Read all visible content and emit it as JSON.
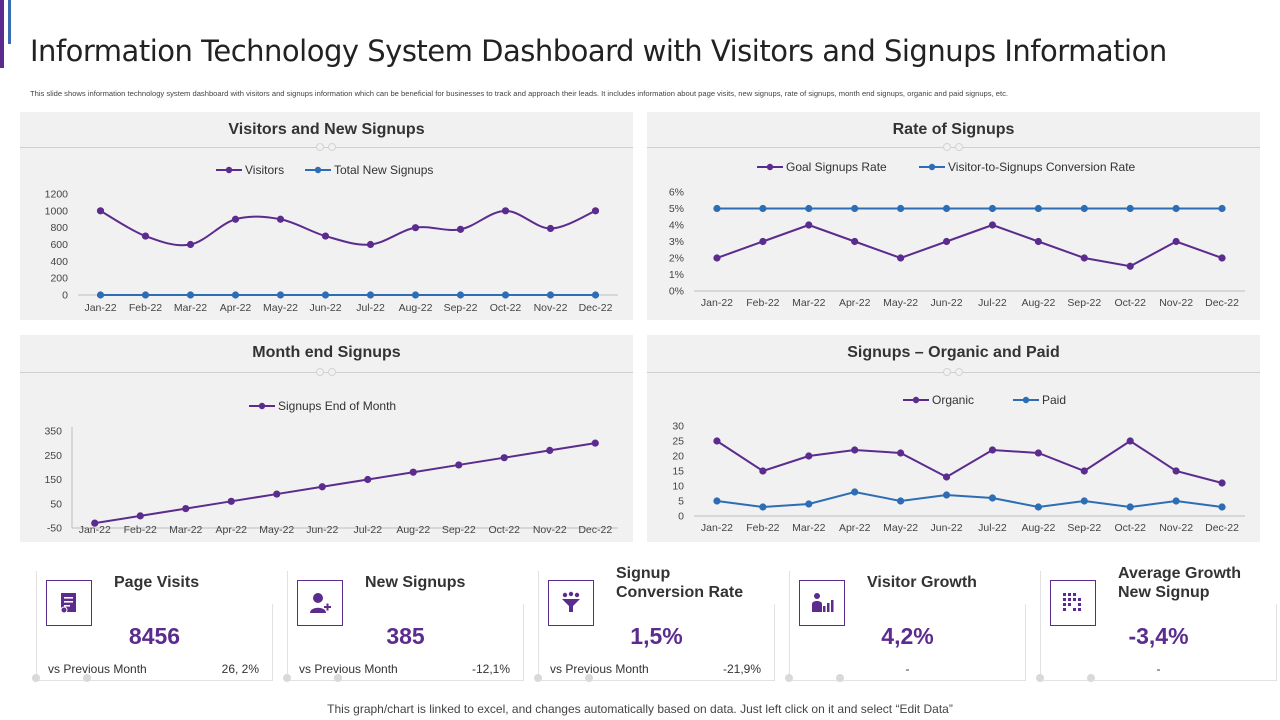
{
  "header": {
    "title": "Information Technology System Dashboard with Visitors and Signups Information",
    "subtitle": "This slide shows information technology system dashboard with visitors and signups information which can be beneficial for businesses to track and approach their leads. It includes information about page visits, new signups, rate of signups, month end signups, organic and paid signups, etc."
  },
  "colors": {
    "purple": "#5b2c8e",
    "blue": "#2e6db4",
    "panel_bg": "#f1f1f1",
    "text": "#333333"
  },
  "chart_data": [
    {
      "type": "line",
      "title": "Visitors and New Signups",
      "categories": [
        "Jan-22",
        "Feb-22",
        "Mar-22",
        "Apr-22",
        "May-22",
        "Jun-22",
        "Jul-22",
        "Aug-22",
        "Sep-22",
        "Oct-22",
        "Nov-22",
        "Dec-22"
      ],
      "series": [
        {
          "name": "Visitors",
          "values": [
            1000,
            700,
            600,
            900,
            900,
            700,
            600,
            800,
            780,
            1000,
            790,
            1000
          ],
          "color": "#5b2c8e",
          "smooth": true
        },
        {
          "name": "Total New Signups",
          "values": [
            0,
            0,
            0,
            0,
            0,
            0,
            0,
            0,
            0,
            0,
            0,
            0
          ],
          "color": "#2e6db4"
        }
      ],
      "yticks": [
        "0",
        "200",
        "400",
        "600",
        "800",
        "1000",
        "1200"
      ],
      "ylim": [
        0,
        1200
      ],
      "legend": "top",
      "grid": false
    },
    {
      "type": "line",
      "title": "Rate of Signups",
      "categories": [
        "Jan-22",
        "Feb-22",
        "Mar-22",
        "Apr-22",
        "May-22",
        "Jun-22",
        "Jul-22",
        "Aug-22",
        "Sep-22",
        "Oct-22",
        "Nov-22",
        "Dec-22"
      ],
      "series": [
        {
          "name": "Goal Signups Rate",
          "values": [
            2,
            3,
            4,
            3,
            2,
            3,
            4,
            3,
            2,
            1.5,
            3,
            2
          ],
          "color": "#5b2c8e"
        },
        {
          "name": "Visitor-to-Signups Conversion Rate",
          "values": [
            5,
            5,
            5,
            5,
            5,
            5,
            5,
            5,
            5,
            5,
            5,
            5
          ],
          "color": "#2e6db4"
        }
      ],
      "yticks": [
        "0%",
        "1%",
        "2%",
        "3%",
        "4%",
        "5%",
        "6%"
      ],
      "ylim": [
        0,
        6
      ],
      "legend": "top",
      "grid": false
    },
    {
      "type": "line",
      "title": "Month end Signups",
      "categories": [
        "Jan-22",
        "Feb-22",
        "Mar-22",
        "Apr-22",
        "May-22",
        "Jun-22",
        "Jul-22",
        "Aug-22",
        "Sep-22",
        "Oct-22",
        "Nov-22",
        "Dec-22"
      ],
      "series": [
        {
          "name": "Signups End of Month",
          "values": [
            -30,
            0,
            30,
            60,
            90,
            120,
            150,
            180,
            210,
            240,
            270,
            300
          ],
          "color": "#5b2c8e"
        }
      ],
      "yticks": [
        "-50",
        "50",
        "150",
        "250",
        "350"
      ],
      "ylim": [
        -50,
        350
      ],
      "legend": "top",
      "grid": false
    },
    {
      "type": "line",
      "title": "Signups – Organic and Paid",
      "categories": [
        "Jan-22",
        "Feb-22",
        "Mar-22",
        "Apr-22",
        "May-22",
        "Jun-22",
        "Jul-22",
        "Aug-22",
        "Sep-22",
        "Oct-22",
        "Nov-22",
        "Dec-22"
      ],
      "series": [
        {
          "name": "Organic",
          "values": [
            25,
            15,
            20,
            22,
            21,
            13,
            22,
            21,
            15,
            25,
            15,
            11
          ],
          "color": "#5b2c8e"
        },
        {
          "name": "Paid",
          "values": [
            5,
            3,
            4,
            8,
            5,
            7,
            6,
            3,
            5,
            3,
            5,
            3
          ],
          "color": "#2e6db4"
        }
      ],
      "yticks": [
        "0",
        "5",
        "10",
        "15",
        "20",
        "25",
        "30"
      ],
      "ylim": [
        0,
        30
      ],
      "legend": "top",
      "grid": false
    }
  ],
  "kpis": [
    {
      "label": "Page Visits",
      "value": "8456",
      "vs": "vs Previous Month",
      "change": "26, 2%",
      "icon": "document-icon"
    },
    {
      "label": "New Signups",
      "value": "385",
      "vs": "vs Previous Month",
      "change": "-12,1%",
      "icon": "add-user-icon"
    },
    {
      "label": "Signup Conversion Rate",
      "value": "1,5%",
      "vs": "vs Previous Month",
      "change": "-21,9%",
      "icon": "funnel-icon"
    },
    {
      "label": "Visitor Growth",
      "value": "4,2%",
      "vs": "",
      "change": "-",
      "icon": "growth-chart-icon"
    },
    {
      "label": "Average Growth New Signup",
      "value": "-3,4%",
      "vs": "",
      "change": "-",
      "icon": "bar-grid-icon"
    }
  ],
  "footer": "This graph/chart is linked to excel,  and changes automatically based on data. Just left click on it and select “Edit Data”"
}
